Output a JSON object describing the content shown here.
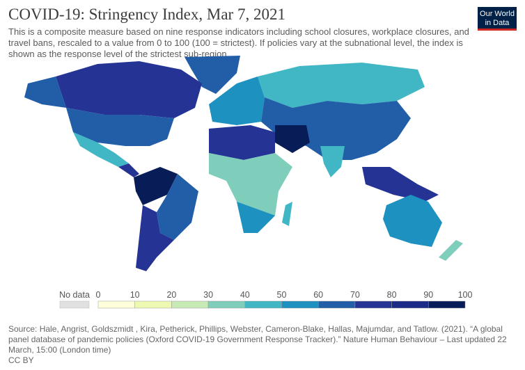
{
  "header": {
    "title": "COVID-19: Stringency Index, Mar 7, 2021",
    "subtitle": "This is a composite measure based on nine response indicators including school closures, workplace closures, and travel bans, rescaled to a value from 0 to 100 (100 = strictest). If policies vary at the subnational level, the index is shown as the response level of the strictest sub-region.",
    "logo": [
      "Our World",
      "in Data"
    ]
  },
  "legend": {
    "no_data_label": "No data",
    "no_data_color": "#e0e0e0",
    "ticks": [
      0,
      10,
      20,
      30,
      40,
      50,
      60,
      70,
      80,
      90,
      100
    ],
    "colors": [
      "#ffffd9",
      "#edf8b1",
      "#c7e9b4",
      "#7fcdbb",
      "#41b6c4",
      "#1d91c0",
      "#225ea8",
      "#253494",
      "#1a2a86",
      "#081d58"
    ]
  },
  "footer": {
    "source": "Source: Hale, Angrist, Goldszmidt , Kira, Petherick, Phillips, Webster, Cameron-Blake, Hallas, Majumdar, and Tatlow. (2021). “A global panel database of pandemic policies (Oxford COVID-19 Government Response Tracker).” Nature Human Behaviour – Last updated 22 March, 15:00 (London time)",
    "license": "CC BY"
  }
}
